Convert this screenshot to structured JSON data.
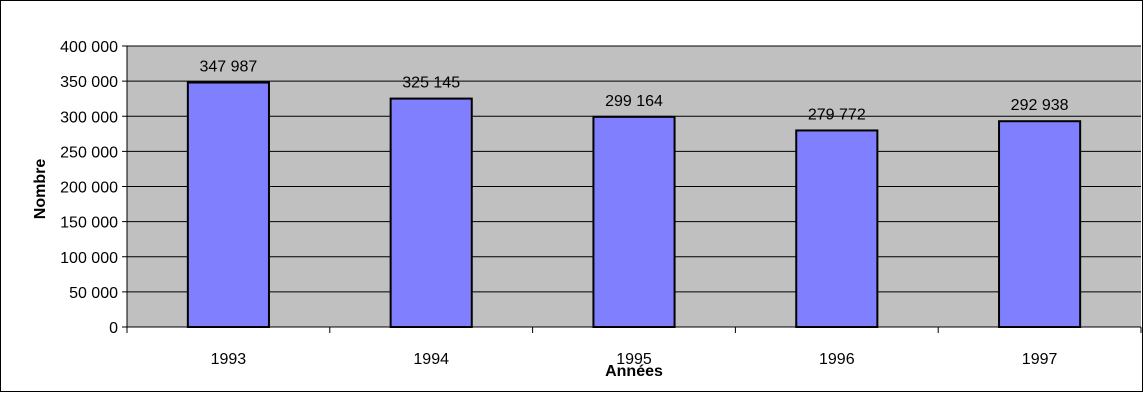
{
  "chart_data": {
    "type": "bar",
    "title": "",
    "xlabel": "Années",
    "ylabel": "Nombre",
    "categories": [
      "1993",
      "1994",
      "1995",
      "1996",
      "1997"
    ],
    "values": [
      347987,
      325145,
      299164,
      279772,
      292938
    ],
    "data_labels": [
      "347 987",
      "325 145",
      "299 164",
      "279 772",
      "292 938"
    ],
    "ylim": [
      0,
      400000
    ],
    "yticks": [
      0,
      50000,
      100000,
      150000,
      200000,
      250000,
      300000,
      350000,
      400000
    ],
    "ytick_labels": [
      "0",
      "50 000",
      "100 000",
      "150 000",
      "200 000",
      "250 000",
      "300 000",
      "350 000",
      "400 000"
    ],
    "grid": true,
    "legend": "none",
    "colors": {
      "bar_fill": "#8080ff",
      "bar_stroke": "#000000",
      "plot_background": "#c0c0c0",
      "gridline": "#000000"
    }
  }
}
